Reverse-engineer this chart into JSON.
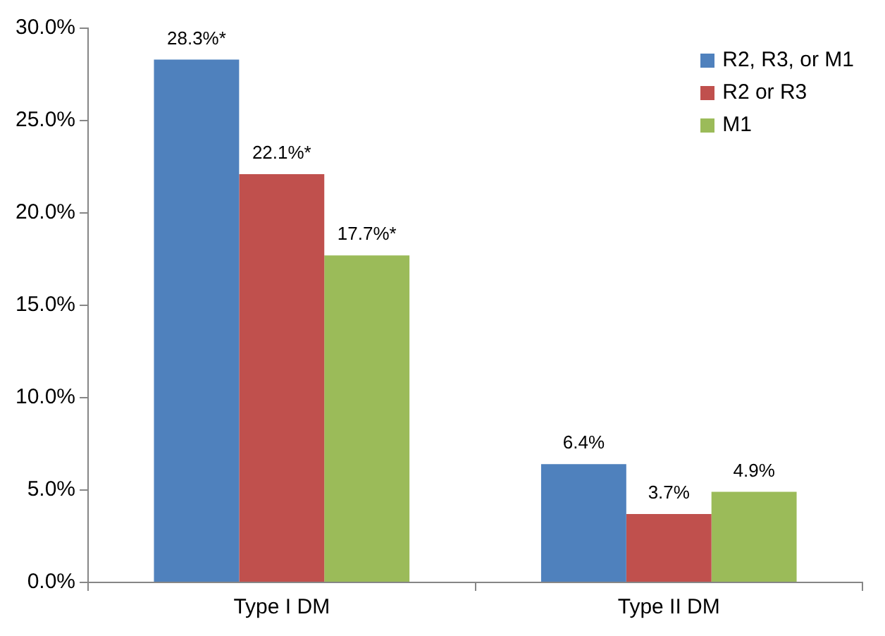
{
  "chart_data": {
    "type": "bar",
    "categories": [
      "Type I DM",
      "Type II DM"
    ],
    "series": [
      {
        "name": "R2, R3, or M1",
        "color": "#4f81bd",
        "values": [
          28.3,
          6.4
        ],
        "value_labels": [
          "28.3%*",
          "6.4%"
        ]
      },
      {
        "name": "R2 or R3",
        "color": "#c0504d",
        "values": [
          22.1,
          3.7
        ],
        "value_labels": [
          "22.1%*",
          "3.7%"
        ]
      },
      {
        "name": "M1",
        "color": "#9bbb59",
        "values": [
          17.7,
          4.9
        ],
        "value_labels": [
          "17.7%*",
          "4.9%"
        ]
      }
    ],
    "ylim": [
      0,
      30
    ],
    "yticks": [
      {
        "value": 0,
        "label": "0.0%"
      },
      {
        "value": 5,
        "label": "5.0%"
      },
      {
        "value": 10,
        "label": "10.0%"
      },
      {
        "value": 15,
        "label": "15.0%"
      },
      {
        "value": 20,
        "label": "20.0%"
      },
      {
        "value": 25,
        "label": "25.0%"
      },
      {
        "value": 30,
        "label": "30.0%"
      }
    ],
    "grid": false,
    "legend": "top right"
  }
}
